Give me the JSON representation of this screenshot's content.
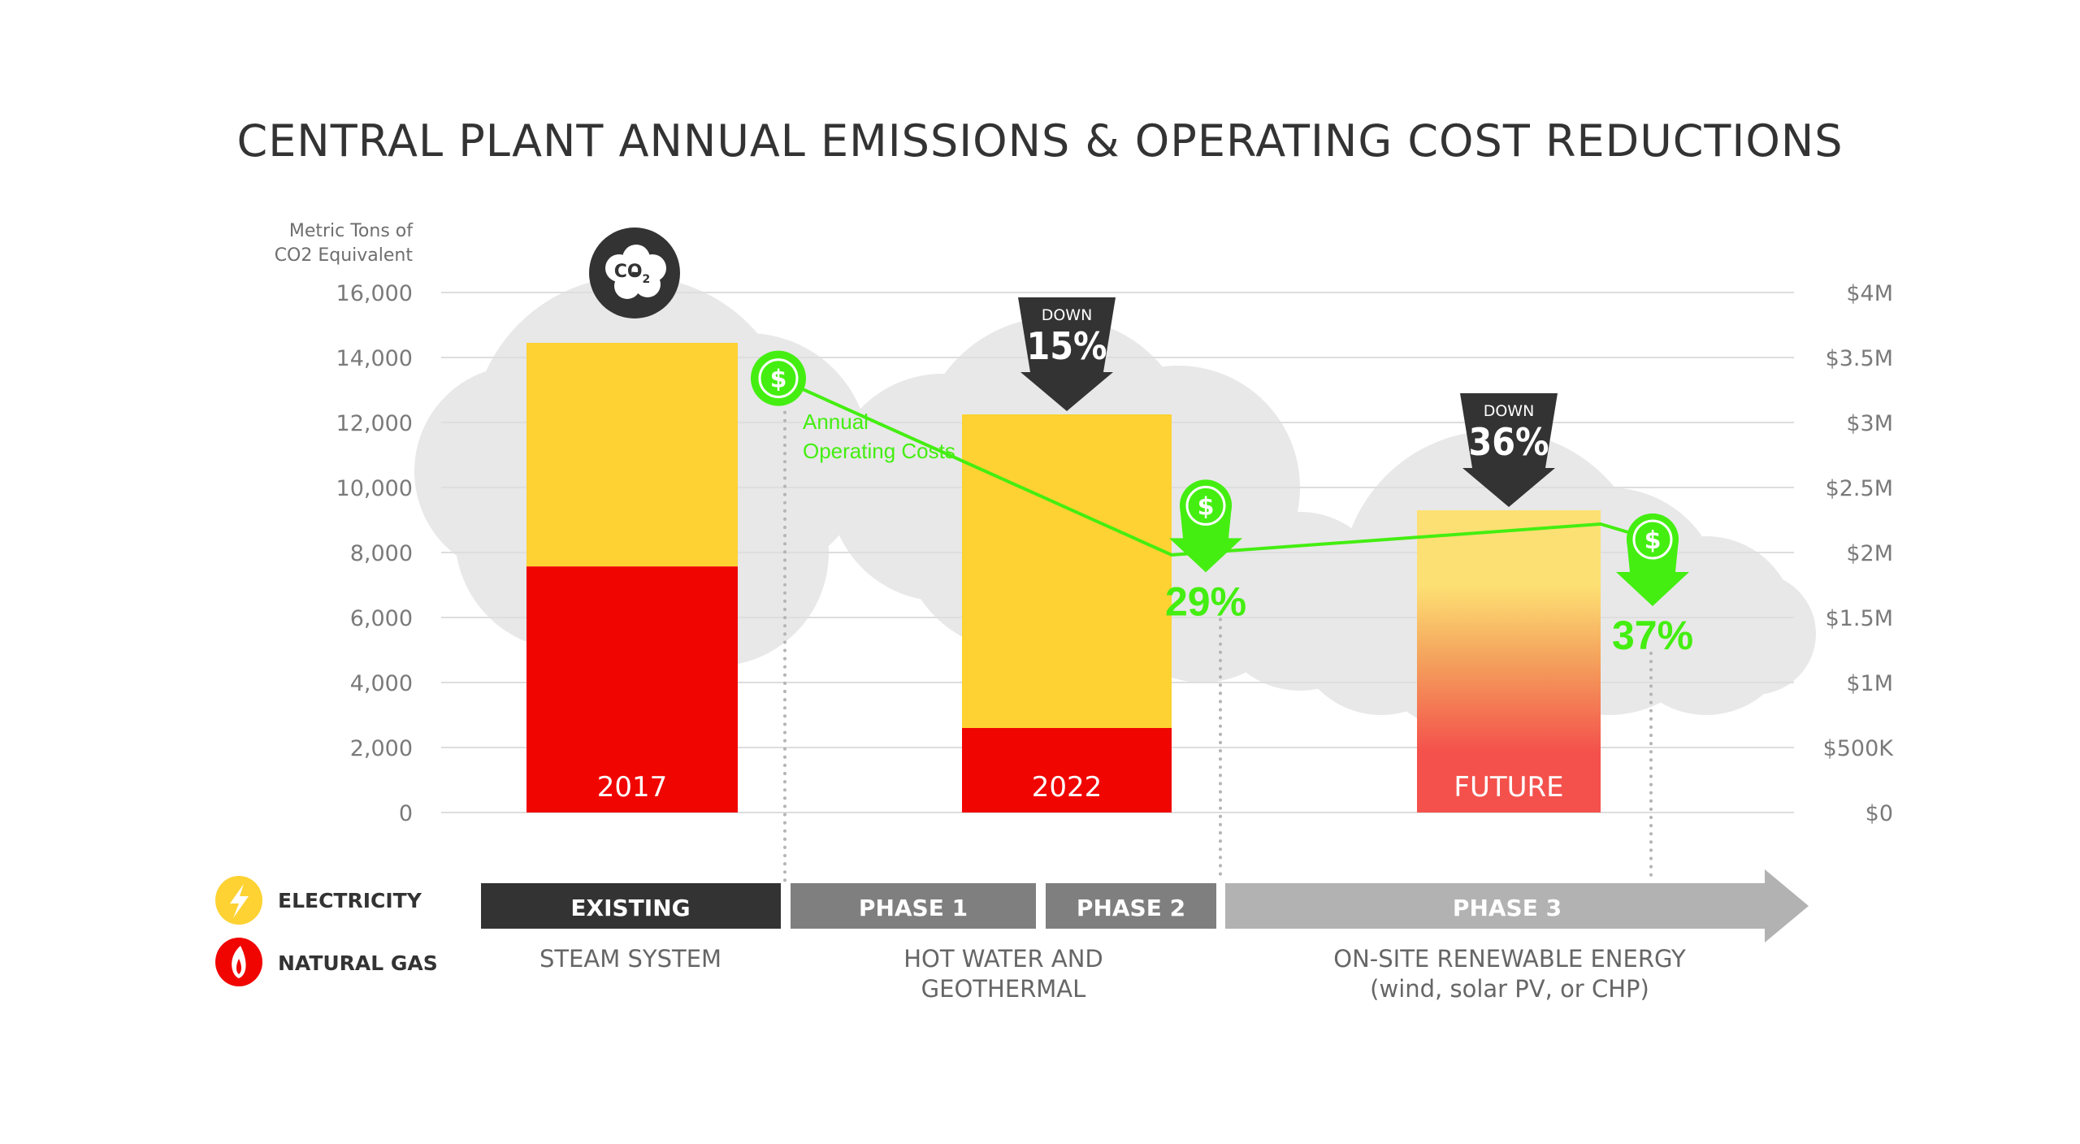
{
  "title": "CENTRAL PLANT ANNUAL EMISSIONS & OPERATING COST REDUCTIONS",
  "colors": {
    "electricity": "#fdd232",
    "natural_gas": "#f00500",
    "future_top": "#fde073",
    "future_mid": "#f4a05c",
    "future_bottom": "#f4514c",
    "cost_green": "#44ee11",
    "dark": "#333333",
    "cloud": "#e8e8e8",
    "grid": "#dedede",
    "existing_bar": "#333333",
    "phase12_bar": "#7f7f7f",
    "phase3_bar": "#b2b2b2"
  },
  "chart_data": {
    "type": "bar",
    "stacked": true,
    "title": "CENTRAL PLANT ANNUAL EMISSIONS & OPERATING COST REDUCTIONS",
    "categories": [
      "2017",
      "2022",
      "FUTURE"
    ],
    "series": [
      {
        "name": "Natural Gas",
        "values": [
          7570,
          2600,
          null
        ]
      },
      {
        "name": "Electricity",
        "values": [
          6880,
          9650,
          null
        ]
      },
      {
        "name": "Future (combined)",
        "values": [
          null,
          null,
          9300
        ]
      }
    ],
    "totals": [
      14450,
      12250,
      9300
    ],
    "ylabel": "Metric Tons of CO2 Equivalent",
    "ylabel_lines": [
      "Metric Tons of",
      "CO2 Equivalent"
    ],
    "ylim": [
      0,
      16000
    ],
    "yticks": [
      0,
      2000,
      4000,
      6000,
      8000,
      10000,
      12000,
      14000,
      16000
    ],
    "ytick_labels": [
      "0",
      "2,000",
      "4,000",
      "6,000",
      "8,000",
      "10,000",
      "12,000",
      "14,000",
      "16,000"
    ],
    "y2label": "Annual Operating Costs",
    "y2lim": [
      0,
      4000000
    ],
    "y2ticks": [
      0,
      500000,
      1000000,
      1500000,
      2000000,
      2500000,
      3000000,
      3500000,
      4000000
    ],
    "y2tick_labels": [
      "$0",
      "$500K",
      "$1M",
      "$1.5M",
      "$2M",
      "$2.5M",
      "$3M",
      "$3.5M",
      "$4M"
    ],
    "cost_line": {
      "name": "Annual Operating Costs",
      "label_lines": [
        "Annual",
        "Operating Costs"
      ],
      "values": [
        3340000,
        2360000,
        2100000
      ],
      "reductions": [
        null,
        "29%",
        "37%"
      ]
    },
    "emission_reductions": [
      null,
      {
        "top": "DOWN",
        "value": "15%"
      },
      {
        "top": "DOWN",
        "value": "36%"
      }
    ],
    "grid": true,
    "legend": {
      "placement": "bottom-left",
      "items": [
        {
          "name": "ELECTRICITY",
          "icon": "lightning-bolt-icon",
          "color": "#fdd232"
        },
        {
          "name": "NATURAL GAS",
          "icon": "flame-icon",
          "color": "#f00500"
        }
      ]
    }
  },
  "co2_badge": {
    "main": "CO",
    "sub": "2"
  },
  "timeline": {
    "phases": [
      {
        "label": "EXISTING"
      },
      {
        "label": "PHASE 1"
      },
      {
        "label": "PHASE 2"
      },
      {
        "label": "PHASE 3"
      }
    ],
    "descriptions": [
      {
        "lines": [
          "STEAM SYSTEM"
        ]
      },
      {
        "lines": [
          "HOT WATER AND",
          "GEOTHERMAL"
        ]
      },
      {
        "lines": [
          "ON-SITE RENEWABLE ENERGY",
          "(wind, solar PV, or CHP)"
        ]
      }
    ]
  }
}
